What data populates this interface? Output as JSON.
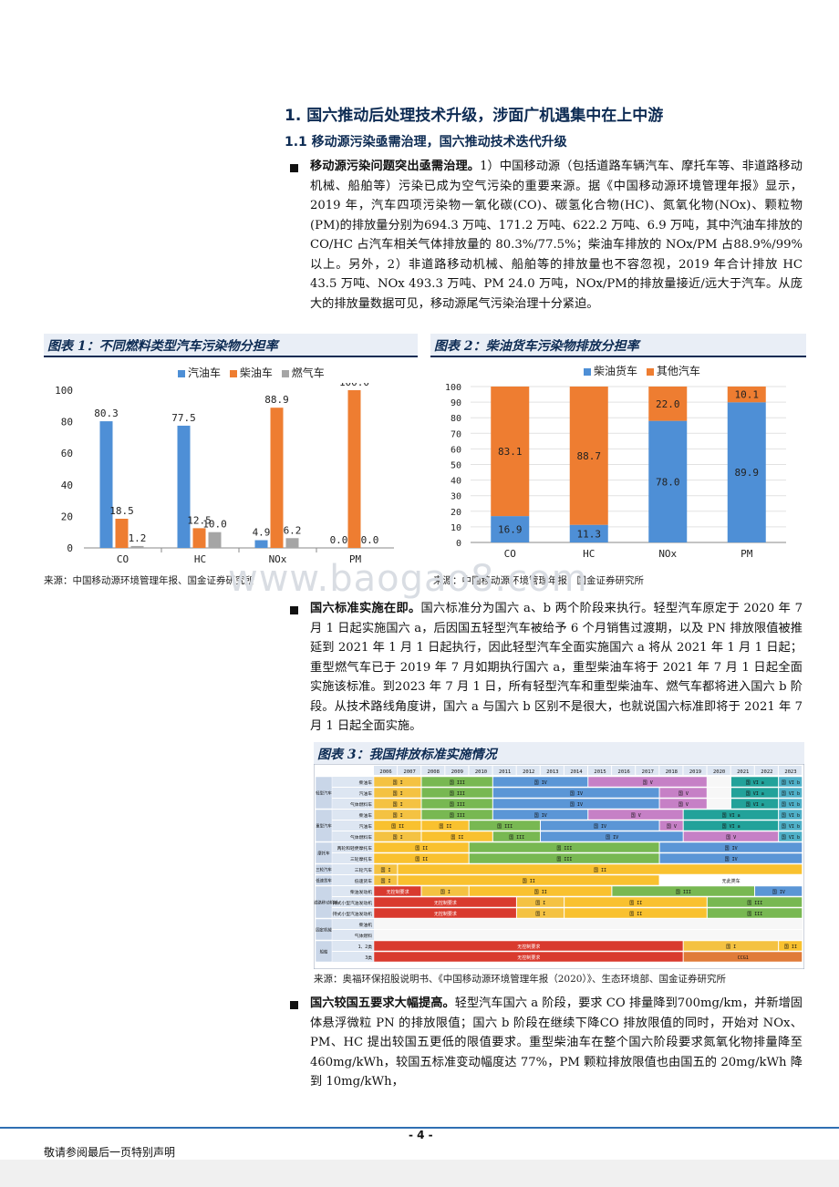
{
  "heading1": "1. 国六推动后处理技术升级，涉面广机遇集中在上中游",
  "heading2": "1.1 移动源污染亟需治理，国六推动技术迭代升级",
  "para1": {
    "lead": "移动源污染问题突出亟需治理。",
    "text": "1）中国移动源（包括道路车辆汽车、摩托车等、非道路移动机械、船舶等）污染已成为空气污染的重要来源。据《中国移动源环境管理年报》显示， 2019 年，汽车四项污染物一氧化碳(CO)、碳氢化合物(HC)、氮氧化物(NOx)、颗粒物(PM)的排放量分别为694.3 万吨、171.2 万吨、622.2 万吨、6.9 万吨，其中汽油车排放的CO/HC 占汽车相关气体排放量的 80.3%/77.5%；柴油车排放的 NOx/PM 占88.9%/99%以上。另外，2）非道路移动机械、船舶等的排放量也不容忽视，2019 年合计排放 HC 43.5 万吨、NOx 493.3 万吨、PM 24.0 万吨，NOx/PM的排放量接近/远大于汽车。从庞大的排放量数据可见，移动源尾气污染治理十分紧迫。"
  },
  "fig1": {
    "title": "图表 1：不同燃料类型汽车污染物分担率",
    "source": "来源：中国移动源环境管理年报、国金证券研究所"
  },
  "fig2": {
    "title": "图表 2：柴油货车污染物排放分担率",
    "source": "来源：中国移动源环境管理年报、国金证券研究所"
  },
  "chart_data": [
    {
      "type": "bar",
      "categories": [
        "CO",
        "HC",
        "NOx",
        "PM"
      ],
      "series": [
        {
          "name": "汽油车",
          "values": [
            80.3,
            77.5,
            4.9,
            0.0
          ],
          "color": "#4e8fd6"
        },
        {
          "name": "柴油车",
          "values": [
            18.5,
            12.5,
            88.9,
            100.0
          ],
          "color": "#ee7d31"
        },
        {
          "name": "燃气车",
          "values": [
            1.2,
            10.0,
            6.2,
            0.0
          ],
          "color": "#a5a5a5"
        }
      ],
      "labels": [
        [
          "80.3",
          "77.5",
          "4.9",
          "0.0"
        ],
        [
          "18.5",
          "12.5",
          "88.9",
          "100.0"
        ],
        [
          "1.2",
          "10.0",
          "6.2",
          "0.0"
        ]
      ],
      "yticks": [
        "0",
        "20",
        "40",
        "60",
        "80",
        "100"
      ],
      "ylim": [
        0,
        100
      ]
    },
    {
      "type": "bar",
      "stacked": true,
      "categories": [
        "CO",
        "HC",
        "NOx",
        "PM"
      ],
      "series": [
        {
          "name": "柴油货车",
          "values": [
            16.9,
            11.3,
            78.0,
            89.9
          ],
          "color": "#4e8fd6"
        },
        {
          "name": "其他汽车",
          "values": [
            83.1,
            88.7,
            22.0,
            10.1
          ],
          "color": "#ee7d31"
        }
      ],
      "labels": [
        [
          "16.9",
          "11.3",
          "78.0",
          "89.9"
        ],
        [
          "83.1",
          "88.7",
          "22.0",
          "10.1"
        ]
      ],
      "yticks": [
        "0",
        "10",
        "20",
        "30",
        "40",
        "50",
        "60",
        "70",
        "80",
        "90",
        "100"
      ],
      "ylim": [
        0,
        100
      ]
    }
  ],
  "para2": {
    "lead": "国六标准实施在即。",
    "text": "国六标准分为国六 a、b 两个阶段来执行。轻型汽车原定于 2020 年 7 月 1 日起实施国六 a，后因国五轻型汽车被给予 6 个月销售过渡期，以及 PN 排放限值被推延到 2021 年 1 月 1 日起执行，因此轻型汽车全面实施国六 a 将从 2021 年 1 月 1 日起；重型燃气车已于 2019 年 7 月如期执行国六 a，重型柴油车将于 2021 年 7 月 1 日起全面实施该标准。到2023 年 7 月 1 日，所有轻型汽车和重型柴油车、燃气车都将进入国六 b 阶段。从技术路线角度讲，国六 a 与国六 b 区别不是很大，也就说国六标准即将于 2021 年 7 月 1 日起全面实施。"
  },
  "fig3": {
    "title": "图表 3：我国排放标准实施情况",
    "source": "来源：奥福环保招股说明书、《中国移动源环境管理年报（2020）》、生态环境部、国金证券研究所",
    "years": [
      "2006",
      "2007",
      "2008",
      "2009",
      "2010",
      "2011",
      "2012",
      "2013",
      "2014",
      "2015",
      "2016",
      "2017",
      "2018",
      "2019",
      "2020",
      "2021",
      "2022",
      "2023"
    ],
    "groups": [
      "轻型汽车",
      "重型汽车",
      "摩托车",
      "三轮汽车",
      "低速货车",
      "非道路移动机械",
      "固定机械",
      "船舶"
    ],
    "rows": [
      "柴油车",
      "汽油车",
      "气体燃料车",
      "柴油车",
      "汽油车",
      "气体燃料车",
      "两轮和轻便摩托车",
      "三轮摩托车",
      "三轮汽车",
      "低速货车",
      "柴油发动机",
      "非手持式小型汽油发动机",
      "手持式小型汽油发动机",
      "柴油机",
      "气体燃料",
      "1、2类",
      "3类"
    ],
    "stage_labels": [
      "国 I",
      "国 II",
      "国 III",
      "国 IV",
      "国 V",
      "国 VI a",
      "国 VI b",
      "无控制要求",
      "无此类车",
      "CCG1"
    ]
  },
  "para3": {
    "lead": "国六较国五要求大幅提高。",
    "text": "轻型汽车国六 a 阶段，要求 CO 排量降到700mg/km，并新增固体悬浮微粒 PN 的排放限值；国六 b 阶段在继续下降CO 排放限值的同时，开始对 NOx、PM、HC 提出较国五更低的限值要求。重型柴油车在整个国六阶段要求氮氧化物排量降至 460mg/kWh，较国五标准变动幅度达 77%，PM 颗粒排放限值也由国五的 20mg/kWh 降到 10mg/kWh，"
  },
  "watermark": "www.baogao8.com",
  "footer": {
    "page": "- 4 -",
    "note": "敬请参阅最后一页特别声明"
  }
}
